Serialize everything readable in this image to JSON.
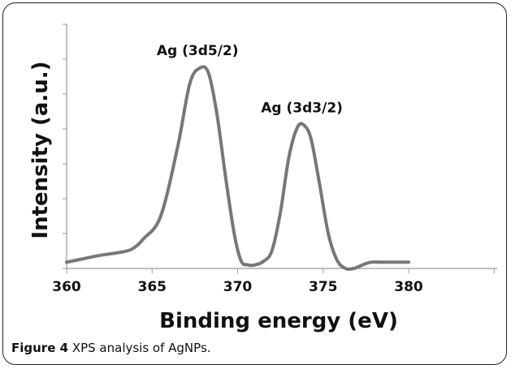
{
  "caption": {
    "label": "Figure 4",
    "text": " XPS analysis of AgNPs."
  },
  "chart_data": {
    "type": "line",
    "xlabel": "Binding energy (eV)",
    "ylabel": "Intensity (a.u.)",
    "xlim": [
      360,
      380
    ],
    "ylim": [
      0,
      7
    ],
    "x_ticks": [
      360,
      365,
      370,
      375,
      380
    ],
    "y_tick_count": 7,
    "grid": false,
    "line_color": "#777777",
    "series": [
      {
        "x": [
          360,
          361,
          362,
          363,
          363.8,
          364.5,
          365.5,
          366.5,
          367.2,
          367.8,
          368.3,
          368.8,
          369.3,
          369.8,
          370.2,
          370.6,
          371.0,
          371.5,
          372.0,
          372.5,
          373.0,
          373.5,
          373.9,
          374.3,
          374.8,
          375.3,
          375.8,
          376.3,
          376.8,
          377.3,
          377.8,
          378.5,
          380
        ],
        "y": [
          0.18,
          0.28,
          0.38,
          0.45,
          0.55,
          0.85,
          1.5,
          3.5,
          5.3,
          5.75,
          5.6,
          4.4,
          2.6,
          1.0,
          0.22,
          0.1,
          0.1,
          0.2,
          0.5,
          1.6,
          3.2,
          4.05,
          4.1,
          3.7,
          2.4,
          1.0,
          0.25,
          0.0,
          0.0,
          0.1,
          0.18,
          0.18,
          0.18
        ]
      }
    ],
    "annotations": [
      {
        "text": "Ag (3d5/2)",
        "x": 367.8,
        "y": 5.75
      },
      {
        "text": "Ag (3d3/2)",
        "x": 373.9,
        "y": 4.1
      }
    ]
  }
}
